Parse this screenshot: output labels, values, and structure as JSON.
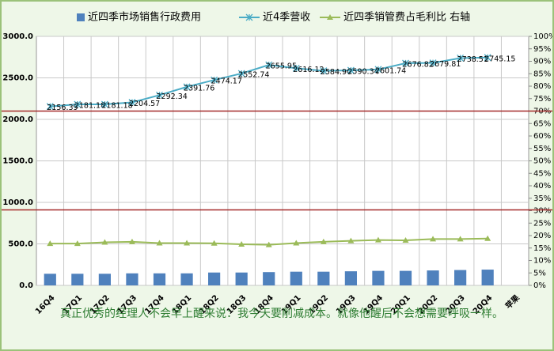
{
  "chart_data": {
    "type": "bar-line",
    "categories": [
      "16Q4",
      "17Q1",
      "17Q2",
      "17Q3",
      "17Q4",
      "18Q1",
      "18Q2",
      "18Q3",
      "18Q4",
      "19Q1",
      "19Q2",
      "19Q3",
      "19Q4",
      "20Q1",
      "20Q2",
      "20Q3",
      "20Q4",
      "苹果"
    ],
    "series": [
      {
        "name": "近四季市场销售行政费用",
        "kind": "bar",
        "color": "#4f81bd",
        "values": [
          140,
          140,
          140,
          145,
          145,
          145,
          155,
          155,
          160,
          165,
          165,
          170,
          175,
          175,
          180,
          185,
          190,
          null
        ]
      },
      {
        "name": "近4季营收",
        "kind": "line",
        "marker": "x",
        "color": "#4bacc6",
        "values": [
          2156.39,
          2181.18,
          2181.18,
          2204.57,
          2292.34,
          2391.76,
          2474.17,
          2552.74,
          2655.95,
          2616.12,
          2584.9,
          2590.34,
          2601.74,
          2676.82,
          2679.81,
          2738.51,
          2745.15,
          null
        ],
        "value_labels": [
          "2156.39",
          "2181.18",
          "2181.18",
          "2204.57",
          "2292.34",
          "2391.76",
          "2474.17",
          "2552.74",
          "2655.95",
          "2616.12",
          "2584.90",
          "2590.34",
          "2601.74",
          "2676.82",
          "2679.81",
          "2738.51",
          "2745.15",
          null
        ]
      },
      {
        "name": "近四季销管费占毛利比 右轴",
        "kind": "line",
        "marker": "triangle",
        "color": "#9bbb59",
        "axis": "y2",
        "values": [
          16.8,
          16.8,
          17.3,
          17.5,
          17,
          17,
          16.9,
          16.5,
          16.3,
          17,
          17.5,
          17.9,
          18.2,
          18.1,
          18.6,
          18.6,
          18.8,
          null
        ]
      }
    ],
    "ylim": [
      0,
      3000
    ],
    "yticks": [
      {
        "value": 0,
        "label": "0.0"
      },
      {
        "value": 500,
        "label": "500.0"
      },
      {
        "value": 1000,
        "label": "1000.0"
      },
      {
        "value": 1500,
        "label": "1500.0"
      },
      {
        "value": 2000,
        "label": "2000.0"
      },
      {
        "value": 2500,
        "label": "2500.0"
      },
      {
        "value": 3000,
        "label": "3000.0"
      }
    ],
    "y2lim": [
      0,
      100
    ],
    "y2ticks": [
      {
        "value": 0,
        "label": "0%"
      },
      {
        "value": 5,
        "label": "5%"
      },
      {
        "value": 10,
        "label": "10%"
      },
      {
        "value": 15,
        "label": "15%"
      },
      {
        "value": 20,
        "label": "20%"
      },
      {
        "value": 25,
        "label": "25%"
      },
      {
        "value": 30,
        "label": "30%"
      },
      {
        "value": 35,
        "label": "35%"
      },
      {
        "value": 40,
        "label": "40%"
      },
      {
        "value": 45,
        "label": "45%"
      },
      {
        "value": 50,
        "label": "50%"
      },
      {
        "value": 55,
        "label": "55%"
      },
      {
        "value": 60,
        "label": "60%"
      },
      {
        "value": 65,
        "label": "65%"
      },
      {
        "value": 70,
        "label": "70%"
      },
      {
        "value": 75,
        "label": "75%"
      },
      {
        "value": 80,
        "label": "80%"
      },
      {
        "value": 85,
        "label": "85%"
      },
      {
        "value": 90,
        "label": "90%"
      },
      {
        "value": 95,
        "label": "95%"
      },
      {
        "value": 100,
        "label": "100%"
      }
    ],
    "reference_lines": [
      2100,
      910
    ],
    "reference_color": "#a52a2a",
    "grid": true,
    "legend": "top",
    "caption": "真正优秀的经理人不会早上醒来说：我今天要削减成本。就像他醒后不会想需要呼吸一样。"
  }
}
